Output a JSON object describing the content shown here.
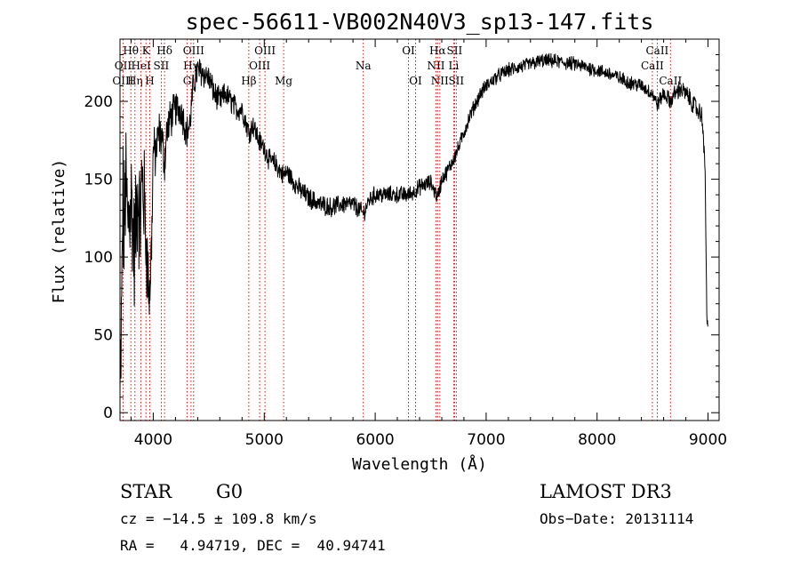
{
  "chart_data": {
    "type": "line",
    "title": "spec-56611-VB002N40V3_sp13-147.fits",
    "xlabel": "Wavelength (Å)",
    "ylabel": "Flux (relative)",
    "xlim": [
      3700,
      9100
    ],
    "ylim": [
      -5,
      240
    ],
    "x_ticks": [
      4000,
      5000,
      6000,
      7000,
      8000,
      9000
    ],
    "y_ticks": [
      0,
      50,
      100,
      150,
      200
    ],
    "grid": false,
    "series": [
      {
        "name": "spectrum",
        "anchors": [
          [
            3700,
            5
          ],
          [
            3705,
            25
          ],
          [
            3715,
            60
          ],
          [
            3725,
            140
          ],
          [
            3735,
            110
          ],
          [
            3750,
            150
          ],
          [
            3770,
            120
          ],
          [
            3800,
            140
          ],
          [
            3830,
            100
          ],
          [
            3860,
            145
          ],
          [
            3880,
            120
          ],
          [
            3900,
            150
          ],
          [
            3920,
            135
          ],
          [
            3935,
            110
          ],
          [
            3950,
            90
          ],
          [
            3968,
            75
          ],
          [
            3985,
            110
          ],
          [
            4000,
            170
          ],
          [
            4020,
            165
          ],
          [
            4050,
            180
          ],
          [
            4080,
            175
          ],
          [
            4101,
            160
          ],
          [
            4120,
            180
          ],
          [
            4150,
            188
          ],
          [
            4200,
            195
          ],
          [
            4250,
            195
          ],
          [
            4300,
            180
          ],
          [
            4330,
            185
          ],
          [
            4360,
            210
          ],
          [
            4400,
            220
          ],
          [
            4450,
            218
          ],
          [
            4500,
            215
          ],
          [
            4550,
            205
          ],
          [
            4600,
            200
          ],
          [
            4650,
            205
          ],
          [
            4700,
            200
          ],
          [
            4750,
            195
          ],
          [
            4800,
            195
          ],
          [
            4861,
            180
          ],
          [
            4900,
            185
          ],
          [
            4950,
            175
          ],
          [
            5000,
            170
          ],
          [
            5050,
            162
          ],
          [
            5100,
            160
          ],
          [
            5175,
            152
          ],
          [
            5200,
            155
          ],
          [
            5300,
            145
          ],
          [
            5400,
            138
          ],
          [
            5500,
            134
          ],
          [
            5600,
            132
          ],
          [
            5700,
            134
          ],
          [
            5800,
            134
          ],
          [
            5893,
            128
          ],
          [
            5950,
            137
          ],
          [
            6000,
            140
          ],
          [
            6100,
            140
          ],
          [
            6200,
            140
          ],
          [
            6300,
            140
          ],
          [
            6350,
            142
          ],
          [
            6400,
            145
          ],
          [
            6500,
            148
          ],
          [
            6563,
            138
          ],
          [
            6600,
            150
          ],
          [
            6650,
            155
          ],
          [
            6700,
            162
          ],
          [
            6750,
            170
          ],
          [
            6800,
            180
          ],
          [
            6850,
            190
          ],
          [
            6900,
            198
          ],
          [
            6950,
            205
          ],
          [
            7000,
            210
          ],
          [
            7100,
            216
          ],
          [
            7200,
            220
          ],
          [
            7300,
            222
          ],
          [
            7400,
            224
          ],
          [
            7500,
            226
          ],
          [
            7600,
            226
          ],
          [
            7700,
            225
          ],
          [
            7800,
            224
          ],
          [
            7900,
            222
          ],
          [
            8000,
            220
          ],
          [
            8100,
            218
          ],
          [
            8200,
            215
          ],
          [
            8300,
            212
          ],
          [
            8400,
            210
          ],
          [
            8498,
            205
          ],
          [
            8542,
            198
          ],
          [
            8600,
            205
          ],
          [
            8662,
            200
          ],
          [
            8700,
            205
          ],
          [
            8750,
            208
          ],
          [
            8800,
            205
          ],
          [
            8850,
            200
          ],
          [
            8900,
            195
          ],
          [
            8950,
            190
          ],
          [
            8975,
            150
          ],
          [
            8990,
            60
          ],
          [
            9000,
            50
          ]
        ],
        "noise_profile": [
          [
            3700,
            40
          ],
          [
            3900,
            35
          ],
          [
            4000,
            14
          ],
          [
            4100,
            12
          ],
          [
            4300,
            9
          ],
          [
            4600,
            7
          ],
          [
            5000,
            6
          ],
          [
            6000,
            5
          ],
          [
            7000,
            4
          ],
          [
            8500,
            4
          ],
          [
            9000,
            6
          ]
        ]
      }
    ],
    "line_labels": [
      {
        "label": "Hθ",
        "wavelength": 3798,
        "row": 1
      },
      {
        "label": "K",
        "wavelength": 3934,
        "row": 1
      },
      {
        "label": "Hδ",
        "wavelength": 4101,
        "row": 1
      },
      {
        "label": "OIII",
        "wavelength": 4363,
        "row": 1
      },
      {
        "label": "OIII",
        "wavelength": 5007,
        "row": 1
      },
      {
        "label": "OI",
        "wavelength": 6300,
        "row": 1
      },
      {
        "label": "Hα",
        "wavelength": 6563,
        "row": 1
      },
      {
        "label": "SII",
        "wavelength": 6716,
        "row": 1
      },
      {
        "label": "CaII",
        "wavelength": 8542,
        "row": 1
      },
      {
        "label": "OII",
        "wavelength": 3727,
        "row": 2
      },
      {
        "label": "HeI",
        "wavelength": 3889,
        "row": 2
      },
      {
        "label": "SII",
        "wavelength": 4072,
        "row": 2
      },
      {
        "label": "Hγ",
        "wavelength": 4340,
        "row": 2
      },
      {
        "label": "OIII",
        "wavelength": 4959,
        "row": 2
      },
      {
        "label": "Na",
        "wavelength": 5893,
        "row": 2
      },
      {
        "label": "NII",
        "wavelength": 6548,
        "row": 2
      },
      {
        "label": "Li",
        "wavelength": 6708,
        "row": 2
      },
      {
        "label": "CaII",
        "wavelength": 8498,
        "row": 2
      },
      {
        "label": "OIII",
        "wavelength": 3727,
        "row": 3
      },
      {
        "label": "Hη",
        "wavelength": 3835,
        "row": 3
      },
      {
        "label": "H",
        "wavelength": 3968,
        "row": 3
      },
      {
        "label": "G",
        "wavelength": 4305,
        "row": 3
      },
      {
        "label": "Hβ",
        "wavelength": 4861,
        "row": 3
      },
      {
        "label": "Mg",
        "wavelength": 5175,
        "row": 3
      },
      {
        "label": "OI",
        "wavelength": 6364,
        "row": 3
      },
      {
        "label": "NII",
        "wavelength": 6583,
        "row": 3
      },
      {
        "label": "SII",
        "wavelength": 6731,
        "row": 3
      },
      {
        "label": "CaII",
        "wavelength": 8662,
        "row": 3
      }
    ],
    "marker_lines": [
      3727,
      3798,
      3835,
      3889,
      3934,
      3968,
      4072,
      4101,
      4305,
      4340,
      4363,
      4861,
      4959,
      5007,
      5175,
      5893,
      6300,
      6364,
      6548,
      6563,
      6583,
      6708,
      6716,
      6731,
      8498,
      8542,
      8662
    ],
    "marker_color": "#cc0000"
  },
  "info": {
    "class": "STAR",
    "subclass": "G0",
    "survey": "LAMOST DR3",
    "cz": "cz = −14.5 ± 109.8 km/s",
    "obs_date": "Obs−Date: 20131114",
    "coords": "RA =   4.94719, DEC =  40.94741"
  }
}
